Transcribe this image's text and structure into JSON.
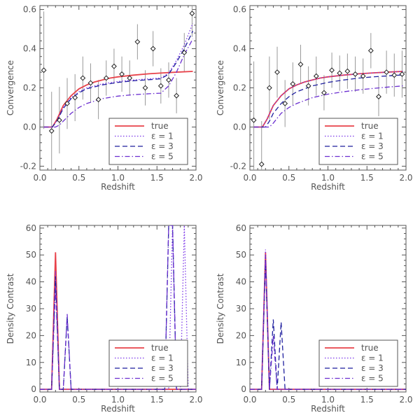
{
  "chart_data": [
    {
      "type": "line",
      "panel": "top-left",
      "xlabel": "Redshift",
      "ylabel": "Convergence",
      "xlim": [
        0.0,
        2.0
      ],
      "ylim": [
        -0.22,
        0.62
      ],
      "xticks": [
        0.0,
        0.5,
        1.0,
        1.5,
        2.0
      ],
      "xtick_labels": [
        "0.0",
        "0.5",
        "1.0",
        "1.5",
        "2.0"
      ],
      "yticks": [
        -0.2,
        0.0,
        0.2,
        0.4,
        0.6
      ],
      "ytick_labels": [
        "-0.2",
        "0.0",
        "0.2",
        "0.4",
        "0.6"
      ],
      "legend_position": "bottom-right",
      "series": [
        {
          "name": "true",
          "style": "solid",
          "color": "#e8424a",
          "x": [
            0.05,
            0.16,
            0.22,
            0.3,
            0.4,
            0.5,
            0.6,
            0.7,
            0.8,
            0.9,
            1.0,
            1.2,
            1.4,
            1.6,
            1.8,
            1.96
          ],
          "y": [
            0,
            0,
            0.04,
            0.11,
            0.16,
            0.195,
            0.215,
            0.23,
            0.24,
            0.25,
            0.256,
            0.265,
            0.272,
            0.277,
            0.281,
            0.284
          ]
        },
        {
          "name": "ε = 1",
          "style": "dotted",
          "color": "#7b35e8",
          "x": [
            0.05,
            0.16,
            0.22,
            0.3,
            0.4,
            0.5,
            0.6,
            0.8,
            1.0,
            1.2,
            1.4,
            1.55,
            1.65,
            1.75,
            1.85,
            1.96
          ],
          "y": [
            0,
            0,
            0.035,
            0.1,
            0.15,
            0.18,
            0.2,
            0.22,
            0.232,
            0.24,
            0.246,
            0.25,
            0.275,
            0.34,
            0.42,
            0.53
          ]
        },
        {
          "name": "ε = 3",
          "style": "dashed",
          "color": "#1f1f9e",
          "x": [
            0.05,
            0.16,
            0.22,
            0.3,
            0.4,
            0.5,
            0.6,
            0.8,
            1.0,
            1.2,
            1.4,
            1.55,
            1.65,
            1.75,
            1.85,
            1.96
          ],
          "y": [
            0,
            0,
            0.032,
            0.095,
            0.145,
            0.175,
            0.195,
            0.215,
            0.228,
            0.236,
            0.242,
            0.246,
            0.27,
            0.33,
            0.4,
            0.49
          ]
        },
        {
          "name": "ε = 5",
          "style": "dashdot",
          "color": "#6b2fd0",
          "x": [
            0.05,
            0.2,
            0.25,
            0.3,
            0.4,
            0.5,
            0.6,
            0.8,
            1.0,
            1.2,
            1.4,
            1.55,
            1.65,
            1.75,
            1.85,
            1.96
          ],
          "y": [
            0,
            0,
            0.01,
            0.03,
            0.07,
            0.1,
            0.12,
            0.145,
            0.158,
            0.165,
            0.17,
            0.173,
            0.21,
            0.28,
            0.37,
            0.45
          ]
        }
      ],
      "points": {
        "x": [
          0.05,
          0.15,
          0.25,
          0.35,
          0.45,
          0.55,
          0.65,
          0.75,
          0.85,
          0.95,
          1.05,
          1.15,
          1.25,
          1.35,
          1.45,
          1.55,
          1.65,
          1.75,
          1.85,
          1.95
        ],
        "y": [
          0.29,
          -0.02,
          0.035,
          0.12,
          0.15,
          0.25,
          0.225,
          0.14,
          0.25,
          0.31,
          0.27,
          0.25,
          0.435,
          0.2,
          0.4,
          0.21,
          0.24,
          0.16,
          0.38,
          0.58
        ],
        "err": [
          0.3,
          0.2,
          0.17,
          0.13,
          0.12,
          0.11,
          0.1,
          0.1,
          0.09,
          0.09,
          0.09,
          0.09,
          0.09,
          0.09,
          0.09,
          0.09,
          0.09,
          0.09,
          0.1,
          0.12
        ]
      }
    },
    {
      "type": "line",
      "panel": "top-right",
      "xlabel": "Redshift",
      "ylabel": "Convergence",
      "xlim": [
        0.0,
        2.0
      ],
      "ylim": [
        -0.22,
        0.62
      ],
      "xticks": [
        0.0,
        0.5,
        1.0,
        1.5,
        2.0
      ],
      "xtick_labels": [
        "0.0",
        "0.5",
        "1.0",
        "1.5",
        "2.0"
      ],
      "yticks": [
        -0.2,
        0.0,
        0.2,
        0.4,
        0.6
      ],
      "ytick_labels": [
        "-0.2",
        "0.0",
        "0.2",
        "0.4",
        "0.6"
      ],
      "legend_position": "bottom-right",
      "series": [
        {
          "name": "true",
          "style": "solid",
          "color": "#e8424a",
          "x": [
            0.05,
            0.16,
            0.22,
            0.3,
            0.4,
            0.5,
            0.6,
            0.7,
            0.8,
            0.9,
            1.0,
            1.2,
            1.4,
            1.6,
            1.8,
            1.96
          ],
          "y": [
            0,
            0,
            0.04,
            0.11,
            0.16,
            0.195,
            0.215,
            0.23,
            0.24,
            0.25,
            0.256,
            0.265,
            0.272,
            0.277,
            0.281,
            0.284
          ]
        },
        {
          "name": "ε = 1",
          "style": "dotted",
          "color": "#7b35e8",
          "x": [
            0.05,
            0.16,
            0.22,
            0.3,
            0.4,
            0.5,
            0.6,
            0.7,
            0.8,
            0.9,
            1.0,
            1.2,
            1.4,
            1.6,
            1.8,
            1.96
          ],
          "y": [
            0,
            0,
            0.04,
            0.11,
            0.16,
            0.195,
            0.215,
            0.23,
            0.24,
            0.25,
            0.256,
            0.265,
            0.272,
            0.277,
            0.281,
            0.284
          ]
        },
        {
          "name": "ε = 3",
          "style": "dashed",
          "color": "#1f1f9e",
          "x": [
            0.05,
            0.2,
            0.25,
            0.3,
            0.4,
            0.5,
            0.6,
            0.8,
            1.0,
            1.2,
            1.4,
            1.6,
            1.8,
            1.96
          ],
          "y": [
            0,
            0,
            0.03,
            0.07,
            0.12,
            0.155,
            0.18,
            0.21,
            0.228,
            0.24,
            0.25,
            0.257,
            0.262,
            0.266
          ]
        },
        {
          "name": "ε = 5",
          "style": "dashdot",
          "color": "#6b2fd0",
          "x": [
            0.05,
            0.25,
            0.3,
            0.35,
            0.4,
            0.5,
            0.6,
            0.8,
            1.0,
            1.2,
            1.4,
            1.6,
            1.8,
            1.96
          ],
          "y": [
            0,
            0,
            0.02,
            0.045,
            0.07,
            0.1,
            0.12,
            0.15,
            0.168,
            0.18,
            0.19,
            0.198,
            0.205,
            0.21
          ]
        }
      ],
      "points": {
        "x": [
          0.05,
          0.15,
          0.25,
          0.35,
          0.45,
          0.55,
          0.65,
          0.75,
          0.85,
          0.95,
          1.05,
          1.15,
          1.25,
          1.35,
          1.45,
          1.55,
          1.65,
          1.75,
          1.85,
          1.95
        ],
        "y": [
          0.035,
          -0.19,
          0.2,
          0.28,
          0.12,
          0.22,
          0.32,
          0.21,
          0.26,
          0.175,
          0.29,
          0.275,
          0.285,
          0.27,
          0.26,
          0.39,
          0.155,
          0.28,
          0.265,
          0.27
        ],
        "err": [
          0.3,
          0.22,
          0.16,
          0.13,
          0.12,
          0.11,
          0.1,
          0.1,
          0.1,
          0.09,
          0.09,
          0.09,
          0.09,
          0.09,
          0.09,
          0.09,
          0.1,
          0.11,
          0.11,
          0.12
        ]
      }
    },
    {
      "type": "line",
      "panel": "bottom-left",
      "xlabel": "Redshift",
      "ylabel": "Density Contrast",
      "xlim": [
        0.0,
        2.0
      ],
      "ylim": [
        -1,
        61
      ],
      "xticks": [
        0.0,
        0.5,
        1.0,
        1.5,
        2.0
      ],
      "xtick_labels": [
        "0.0",
        "0.5",
        "1.0",
        "1.5",
        "2.0"
      ],
      "yticks": [
        0,
        10,
        20,
        30,
        40,
        50,
        60
      ],
      "ytick_labels": [
        "0",
        "10",
        "20",
        "30",
        "40",
        "50",
        "60"
      ],
      "legend_position": "bottom-right",
      "series": [
        {
          "name": "true",
          "style": "solid",
          "color": "#e8424a",
          "x": [
            0.0,
            0.15,
            0.2,
            0.25,
            2.0
          ],
          "y": [
            0,
            0,
            51,
            0,
            0
          ]
        },
        {
          "name": "ε = 1",
          "style": "dotted",
          "color": "#7b35e8",
          "x": [
            0.0,
            0.15,
            0.2,
            0.25,
            1.65,
            1.7,
            1.75,
            1.8,
            1.85,
            1.9,
            2.0
          ],
          "y": [
            0,
            0,
            44,
            0,
            0,
            61,
            0,
            0,
            61,
            0,
            0
          ]
        },
        {
          "name": "ε = 3",
          "style": "dashed",
          "color": "#1f1f9e",
          "x": [
            0.0,
            0.15,
            0.2,
            0.25,
            0.3,
            0.35,
            0.4,
            1.6,
            1.65,
            1.7,
            1.75,
            2.0
          ],
          "y": [
            0,
            0,
            42,
            0,
            0,
            27,
            0,
            0,
            61,
            61,
            0,
            0
          ]
        },
        {
          "name": "ε = 5",
          "style": "dashdot",
          "color": "#6b2fd0",
          "x": [
            0.0,
            0.15,
            0.2,
            0.25,
            0.3,
            0.35,
            0.4,
            1.6,
            1.65,
            1.7,
            1.75,
            2.0
          ],
          "y": [
            0,
            0,
            38,
            0,
            0,
            28,
            0,
            0,
            61,
            61,
            0,
            0
          ]
        }
      ]
    },
    {
      "type": "line",
      "panel": "bottom-right",
      "xlabel": "Redshift",
      "ylabel": "Density Contrast",
      "xlim": [
        0.0,
        2.0
      ],
      "ylim": [
        -1,
        61
      ],
      "xticks": [
        0.0,
        0.5,
        1.0,
        1.5,
        2.0
      ],
      "xtick_labels": [
        "0.0",
        "0.5",
        "1.0",
        "1.5",
        "2.0"
      ],
      "yticks": [
        0,
        10,
        20,
        30,
        40,
        50,
        60
      ],
      "ytick_labels": [
        "0",
        "10",
        "20",
        "30",
        "40",
        "50",
        "60"
      ],
      "legend_position": "bottom-right",
      "series": [
        {
          "name": "true",
          "style": "solid",
          "color": "#e8424a",
          "x": [
            0.0,
            0.15,
            0.2,
            0.25,
            2.0
          ],
          "y": [
            0,
            0,
            51,
            0,
            0
          ]
        },
        {
          "name": "ε = 1",
          "style": "dotted",
          "color": "#7b35e8",
          "x": [
            0.0,
            0.15,
            0.2,
            0.25,
            2.0
          ],
          "y": [
            0,
            0,
            52,
            0,
            0
          ]
        },
        {
          "name": "ε = 3",
          "style": "dashed",
          "color": "#1f1f9e",
          "x": [
            0.0,
            0.15,
            0.2,
            0.25,
            0.3,
            0.35,
            0.4,
            0.45,
            2.0
          ],
          "y": [
            0,
            0,
            48,
            0,
            26,
            0,
            25,
            0,
            0
          ]
        },
        {
          "name": "ε = 5",
          "style": "dashdot",
          "color": "#6b2fd0",
          "x": [
            0.0,
            0.15,
            0.2,
            0.25,
            0.3,
            0.35,
            0.4,
            2.0
          ],
          "y": [
            0,
            0,
            50,
            0,
            20,
            0,
            0,
            0
          ]
        }
      ]
    }
  ]
}
